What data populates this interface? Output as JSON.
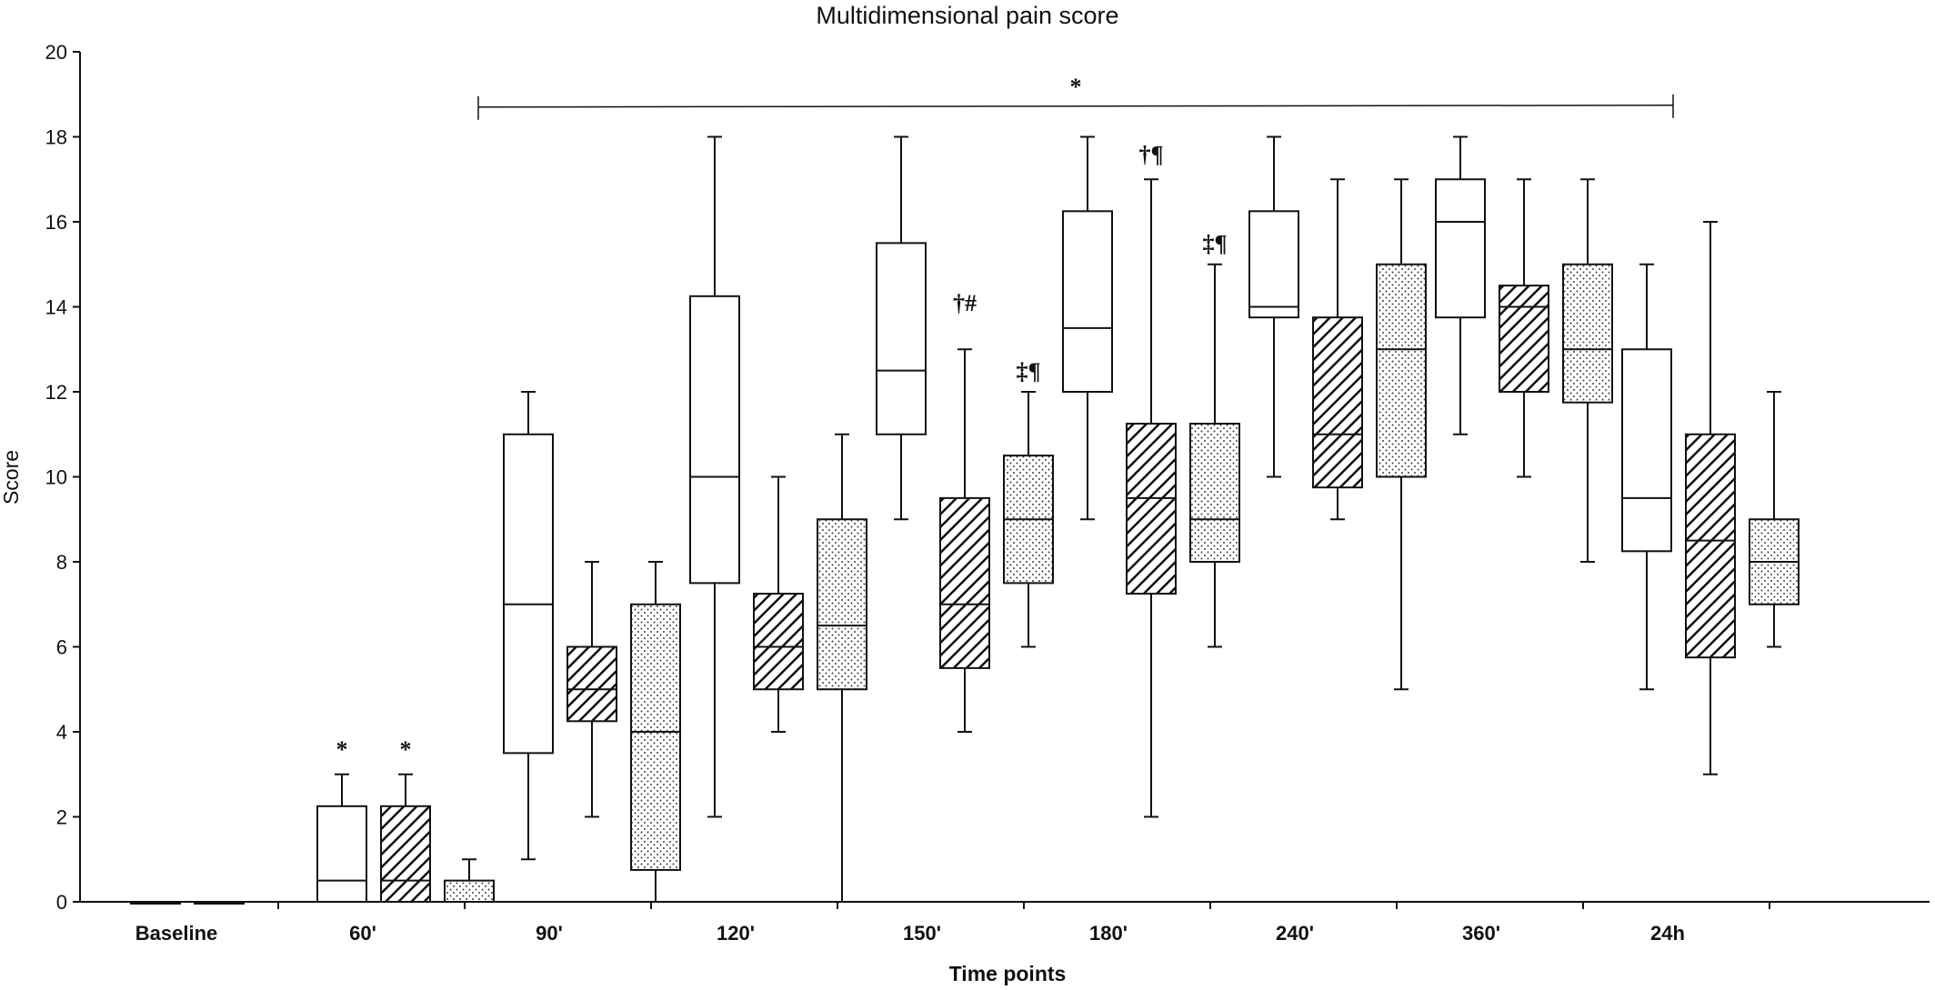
{
  "chart_data": {
    "type": "box",
    "title": "Multidimensional pain score",
    "xlabel": "Time points",
    "ylabel": "Score",
    "ylim": [
      0,
      20
    ],
    "yticks": [
      "0",
      "2",
      "4",
      "6",
      "8",
      "10",
      "12",
      "14",
      "16",
      "18",
      "20"
    ],
    "categories": [
      "Baseline",
      "60'",
      "90'",
      "120'",
      "150'",
      "180'",
      "240'",
      "360'",
      "24h"
    ],
    "series": [
      {
        "fill": "white",
        "stats": [
          {
            "min": 0,
            "q1": 0,
            "median": 0,
            "q3": 0,
            "max": 0
          },
          {
            "min": 0,
            "q1": 0,
            "median": 0.5,
            "q3": 2.25,
            "max": 3
          },
          {
            "min": 1,
            "q1": 3.5,
            "median": 7,
            "q3": 11,
            "max": 12
          },
          {
            "min": 2,
            "q1": 7.5,
            "median": 10,
            "q3": 14.25,
            "max": 18
          },
          {
            "min": 9,
            "q1": 11,
            "median": 12.5,
            "q3": 15.5,
            "max": 18
          },
          {
            "min": 9,
            "q1": 12,
            "median": 13.5,
            "q3": 16.25,
            "max": 18
          },
          {
            "min": 10,
            "q1": 13.75,
            "median": 14,
            "q3": 16.25,
            "max": 18
          },
          {
            "min": 11,
            "q1": 13.75,
            "median": 16,
            "q3": 17,
            "max": 18
          },
          {
            "min": 5,
            "q1": 8.25,
            "median": 9.5,
            "q3": 13,
            "max": 15
          }
        ]
      },
      {
        "fill": "hatched",
        "stats": [
          {
            "min": 0,
            "q1": 0,
            "median": 0,
            "q3": 0,
            "max": 0
          },
          {
            "min": 0,
            "q1": 0,
            "median": 0.5,
            "q3": 2.25,
            "max": 3
          },
          {
            "min": 2,
            "q1": 4.25,
            "median": 5,
            "q3": 6,
            "max": 8
          },
          {
            "min": 4,
            "q1": 5,
            "median": 6,
            "q3": 7.25,
            "max": 10
          },
          {
            "min": 4,
            "q1": 5.5,
            "median": 7,
            "q3": 9.5,
            "max": 13
          },
          {
            "min": 2,
            "q1": 7.25,
            "median": 9.5,
            "q3": 11.25,
            "max": 17
          },
          {
            "min": 9,
            "q1": 9.75,
            "median": 11,
            "q3": 13.75,
            "max": 17
          },
          {
            "min": 10,
            "q1": 12,
            "median": 14,
            "q3": 14.5,
            "max": 17
          },
          {
            "min": 3,
            "q1": 5.75,
            "median": 8.5,
            "q3": 11,
            "max": 16
          }
        ]
      },
      {
        "fill": "dotted",
        "stats": [
          null,
          {
            "min": 0,
            "q1": 0,
            "median": 0,
            "q3": 0.5,
            "max": 1
          },
          {
            "min": 0,
            "q1": 0.75,
            "median": 4,
            "q3": 7,
            "max": 8
          },
          {
            "min": 0,
            "q1": 5,
            "median": 6.5,
            "q3": 9,
            "max": 11
          },
          {
            "min": 6,
            "q1": 7.5,
            "median": 9,
            "q3": 10.5,
            "max": 12
          },
          {
            "min": 6,
            "q1": 8,
            "median": 9,
            "q3": 11.25,
            "max": 15
          },
          {
            "min": 5,
            "q1": 10,
            "median": 13,
            "q3": 15,
            "max": 17
          },
          {
            "min": 8,
            "q1": 11.75,
            "median": 13,
            "q3": 15,
            "max": 17
          },
          {
            "min": 6,
            "q1": 7,
            "median": 8,
            "q3": 9,
            "max": 12
          }
        ]
      }
    ],
    "annotations": [
      {
        "text": "*",
        "category": 1,
        "series": 0,
        "y": 3.4
      },
      {
        "text": "*",
        "category": 1,
        "series": 1,
        "y": 3.4
      },
      {
        "text": "†#",
        "category": 4,
        "series": 1,
        "y": 13.9
      },
      {
        "text": "‡¶",
        "category": 4,
        "series": 2,
        "y": 12.3
      },
      {
        "text": "†¶",
        "category": 5,
        "series": 1,
        "y": 17.4
      },
      {
        "text": "‡¶",
        "category": 5,
        "series": 2,
        "y": 15.3
      }
    ],
    "bracket": {
      "label": "*",
      "from_category": 2,
      "to_category": 8,
      "y": 18.7
    },
    "grid": false,
    "legend": "none"
  }
}
